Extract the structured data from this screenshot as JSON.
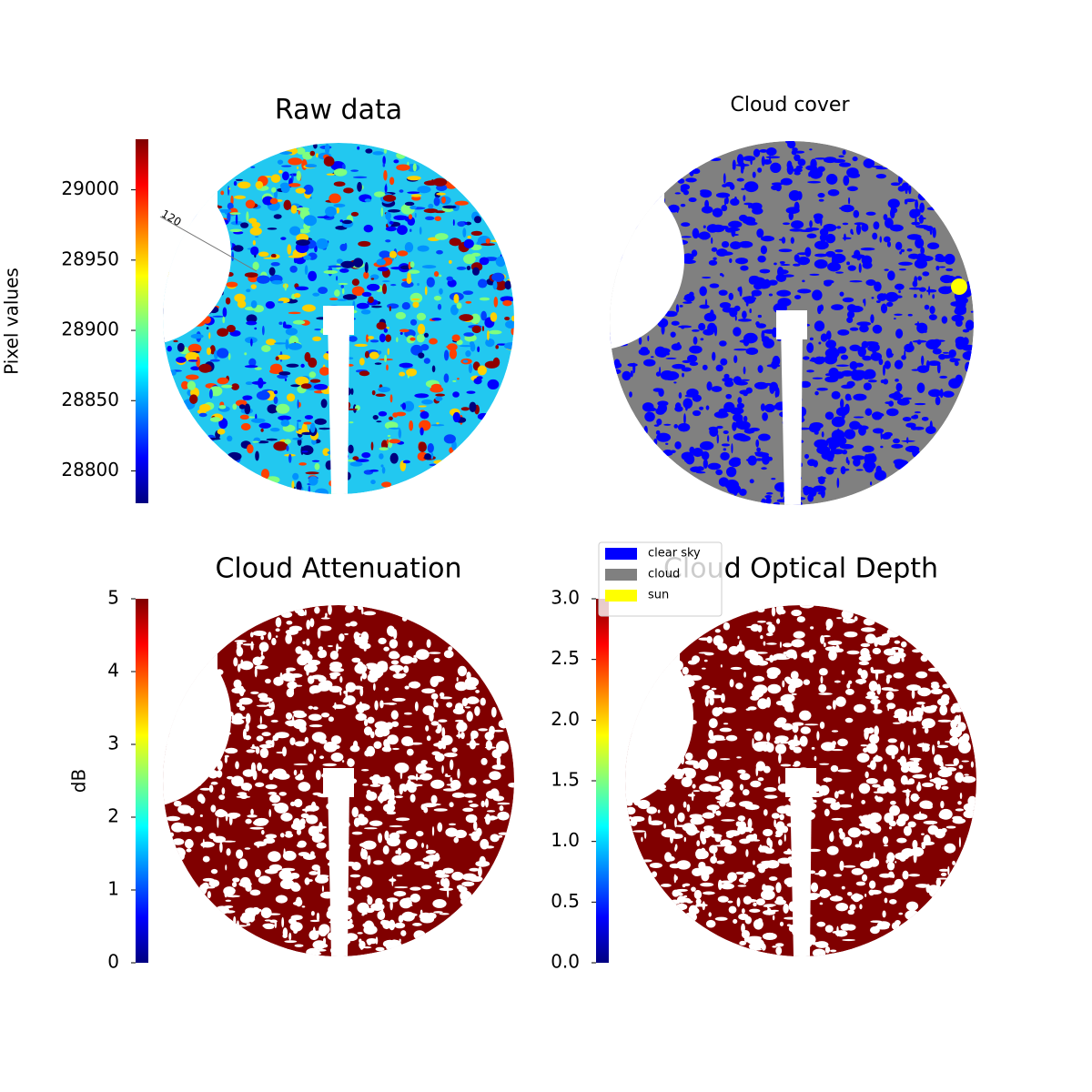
{
  "chart_data": [
    {
      "type": "image",
      "title": "Raw data",
      "annotations": [
        "120"
      ],
      "colorbar": {
        "label": "Pixel values",
        "colormap": "jet",
        "lim": [
          28777,
          29036
        ],
        "ticks": [
          28800,
          28850,
          28900,
          28950,
          29000
        ]
      }
    },
    {
      "type": "image",
      "title": "Cloud cover",
      "legend": {
        "entries": [
          {
            "name": "clear sky",
            "color": "#0000ff"
          },
          {
            "name": "cloud",
            "color": "#808080"
          },
          {
            "name": "sun",
            "color": "#ffff00"
          }
        ]
      }
    },
    {
      "type": "image",
      "title": "Cloud Attenuation",
      "colorbar": {
        "label": "dB",
        "colormap": "jet",
        "lim": [
          0,
          5
        ],
        "ticks": [
          0,
          1,
          2,
          3,
          4,
          5
        ]
      }
    },
    {
      "type": "image",
      "title": "Cloud Optical Depth",
      "colorbar": {
        "colormap": "jet",
        "lim": [
          0,
          3
        ],
        "ticks": [
          {
            "value": 0,
            "label": "0.0"
          },
          {
            "value": 0.5,
            "label": "0.5"
          },
          {
            "value": 1,
            "label": "1.0"
          },
          {
            "value": 1.5,
            "label": "1.5"
          },
          {
            "value": 2,
            "label": "2.0"
          },
          {
            "value": 2.5,
            "label": "2.5"
          },
          {
            "value": 3,
            "label": "3.0"
          }
        ]
      }
    }
  ]
}
